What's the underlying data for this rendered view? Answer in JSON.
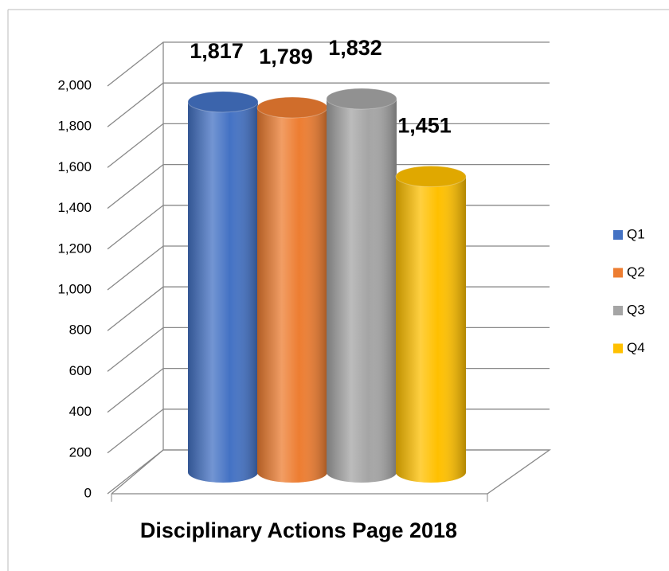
{
  "chart_data": {
    "type": "bar",
    "title": "Disciplinary Actions Page 2018",
    "categories": [
      "Disciplinary Actions Page 2018"
    ],
    "series": [
      {
        "name": "Q1",
        "color": "#4472c4",
        "values": [
          1817
        ],
        "value_labels": [
          "1,817"
        ]
      },
      {
        "name": "Q2",
        "color": "#ed7d31",
        "values": [
          1789
        ],
        "value_labels": [
          "1,789"
        ]
      },
      {
        "name": "Q3",
        "color": "#a5a5a5",
        "values": [
          1832
        ],
        "value_labels": [
          "1,832"
        ]
      },
      {
        "name": "Q4",
        "color": "#ffc000",
        "values": [
          1451
        ],
        "value_labels": [
          "1,451"
        ]
      }
    ],
    "ylim": [
      0,
      2000
    ],
    "yticks": [
      0,
      200,
      400,
      600,
      800,
      {
        "value": 1000,
        "label": "1,000"
      },
      {
        "value": 1200,
        "label": "1,200"
      },
      {
        "value": 1400,
        "label": "1,400"
      },
      {
        "value": 1600,
        "label": "1,600"
      },
      {
        "value": 1800,
        "label": "1,800"
      },
      {
        "value": 2000,
        "label": "2,000"
      }
    ],
    "grid": true,
    "legend": "right"
  }
}
